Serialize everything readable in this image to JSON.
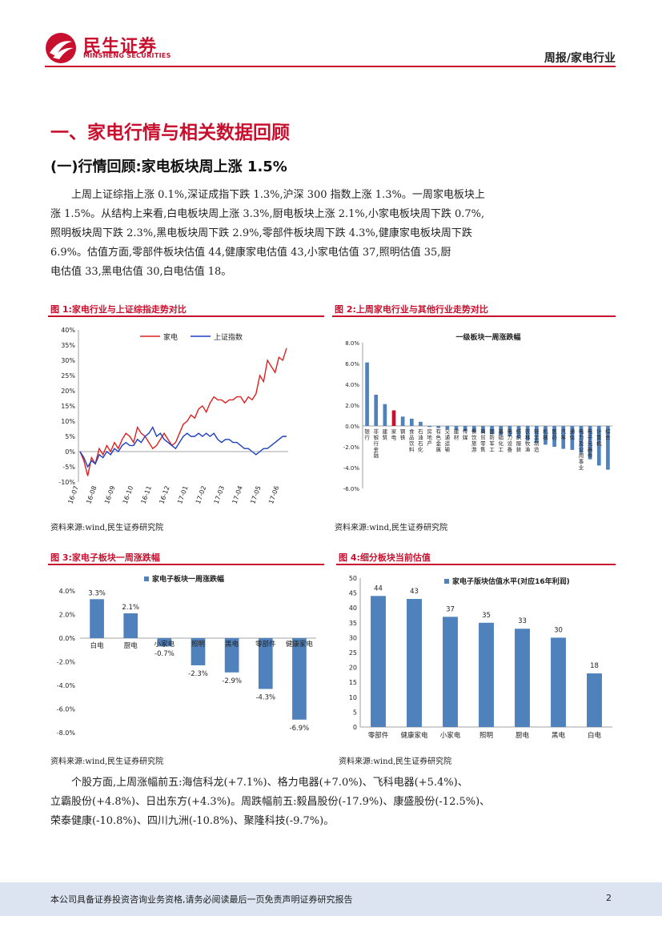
{
  "header": {
    "logo_cn": "民生证券",
    "logo_en": "MINSHENG SECURITIES",
    "doc_type": "周报/家电行业",
    "colors": {
      "brand_red": "#c8102e",
      "bar_blue": "#4f81bd"
    }
  },
  "section_title": "一、家电行情与相关数据回顾",
  "subsection_title": "(一)行情回顾:家电板块周上涨 1.5%",
  "paragraph1": [
    "上周上证综指上涨 0.1%,深证成指下跌 1.3%,沪深 300 指数上涨 1.3%。一周家电板块上",
    "涨 1.5%。从结构上来看,白电板块周上涨 3.3%,厨电板块上涨 2.1%,小家电板块周下跌 0.7%,",
    "照明板块周下跌 2.3%,黑电板块周下跌 2.9%,零部件板块周下跌 4.3%,健康家电板块周下跌",
    "6.9%。估值方面,零部件板块估值 44,健康家电估值 43,小家电估值 37,照明估值 35,厨",
    "电估值 33,黑电估值 30,白电估值 18。"
  ],
  "figures": {
    "fig1": {
      "title": "图 1:家电行业与上证综指走势对比",
      "source": "资料来源:wind,民生证券研究院"
    },
    "fig2": {
      "title": "图 2:上周家电行业与其他行业走势对比",
      "source": "资料来源:wind,民生证券研究院"
    },
    "fig3": {
      "title": "图 3:家电子板块一周涨跌幅",
      "source": "资料来源:wind,民生证券研究院"
    },
    "fig4": {
      "title": "图 4:细分板块当前估值",
      "source": "资料来源:wind,民生证券研究院"
    }
  },
  "paragraph2": [
    "个股方面,上周涨幅前五:海信科龙(+7.1%)、格力电器(+7.0%)、飞科电器(+5.4%)、",
    "立霸股份(+4.8%)、日出东方(+4.3%)。周跌幅前五:毅昌股份(-17.9%)、康盛股份(-12.5%)、",
    "荣泰健康(-10.8%)、四川九洲(-10.8%)、聚隆科技(-9.7%)。"
  ],
  "footer": {
    "disclaimer": "本公司具备证券投资咨询业务资格,请务必阅读最后一页免责声明证券研究报告",
    "page_number": "2"
  },
  "chart_data": [
    {
      "id": "fig1",
      "type": "line",
      "title": "",
      "x_tick_labels": [
        "16-07",
        "16-08",
        "16-09",
        "16-10",
        "16-11",
        "16-12",
        "17-01",
        "17-02",
        "17-03",
        "17-04",
        "17-05",
        "17-06"
      ],
      "y_tick_labels": [
        "-10%",
        "-5%",
        "0%",
        "5%",
        "10%",
        "15%",
        "20%",
        "25%",
        "30%",
        "35%",
        "40%"
      ],
      "ylim": [
        -10,
        40
      ],
      "series": [
        {
          "name": "家电",
          "color": "#e02020",
          "values": [
            0,
            -3,
            -8,
            -2,
            -4,
            1,
            -1,
            2,
            0,
            3,
            1,
            4,
            6,
            5,
            3,
            8,
            6,
            5,
            3,
            1,
            2,
            4,
            6,
            4,
            2,
            3,
            6,
            9,
            10,
            12,
            11,
            14,
            15,
            13,
            16,
            18,
            17,
            17,
            16,
            17,
            17,
            18,
            18,
            16,
            18,
            17,
            19,
            25,
            23,
            30,
            28,
            26,
            31,
            30,
            34
          ]
        },
        {
          "name": "上证指数",
          "color": "#1f3fbf",
          "values": [
            0,
            -2,
            -5,
            -3,
            -4,
            -1,
            -2,
            0,
            -1,
            1,
            0,
            2,
            3,
            2,
            2,
            4,
            3,
            5,
            6,
            8,
            5,
            6,
            4,
            3,
            2,
            1,
            3,
            5,
            6,
            5,
            5,
            6,
            5,
            6,
            5,
            6,
            4,
            3,
            4,
            4,
            3,
            3,
            2,
            1,
            1,
            0,
            -1,
            0,
            1,
            1,
            2,
            3,
            4,
            5,
            5
          ]
        }
      ],
      "legend": "top"
    },
    {
      "id": "fig2",
      "type": "bar",
      "title": "一级板块一周涨跌幅",
      "categories": [
        "银行",
        "非银行金融",
        "建筑",
        "家电",
        "钢铁",
        "食品饮料",
        "石油石化",
        "房地产",
        "有色金属",
        "交通运输",
        "建材",
        "传媒",
        "餐饮旅游",
        "商贸零售",
        "国防军工",
        "基础化工",
        "电力设备",
        "纺织服装",
        "农林牧渔",
        "轻工制造",
        "机械",
        "医药",
        "汽车",
        "通信",
        "电力及公用事业",
        "电子元器件",
        "计算机",
        "综合"
      ],
      "values": [
        6.1,
        3.0,
        2.1,
        1.5,
        0.9,
        0.7,
        0.4,
        -0.1,
        -0.2,
        -0.3,
        -0.4,
        -0.5,
        -0.6,
        -0.7,
        -0.8,
        -0.9,
        -1.0,
        -1.2,
        -1.4,
        -1.6,
        -1.8,
        -2.0,
        -2.2,
        -2.3,
        -2.6,
        -3.2,
        -3.8,
        -4.2
      ],
      "highlight": "家电",
      "ylim": [
        -6,
        8
      ],
      "y_tick_labels": [
        "8.0%",
        "6.0%",
        "4.0%",
        "2.0%",
        "0.0%",
        "-2.0%",
        "-4.0%",
        "-6.0%"
      ]
    },
    {
      "id": "fig3",
      "type": "bar",
      "title": "家电子板块一周涨跌幅",
      "categories": [
        "白电",
        "厨电",
        "小家电",
        "照明",
        "黑电",
        "零部件",
        "健康家电"
      ],
      "values": [
        3.3,
        2.1,
        -0.7,
        -2.3,
        -2.9,
        -4.3,
        -6.9
      ],
      "value_labels": [
        "3.3%",
        "2.1%",
        "-0.7%",
        "-2.3%",
        "-2.9%",
        "-4.3%",
        "-6.9%"
      ],
      "ylim": [
        -8,
        4
      ],
      "y_tick_labels": [
        "4.0%",
        "2.0%",
        "0.0%",
        "-2.0%",
        "-4.0%",
        "-6.0%",
        "-8.0%"
      ]
    },
    {
      "id": "fig4",
      "type": "bar",
      "title": "家电子版块估值水平(对应16年利润)",
      "categories": [
        "零部件",
        "健康家电",
        "小家电",
        "照明",
        "厨电",
        "黑电",
        "白电"
      ],
      "values": [
        44,
        43,
        37,
        35,
        33,
        30,
        18
      ],
      "value_labels": [
        "44",
        "43",
        "37",
        "35",
        "33",
        "30",
        "18"
      ],
      "ylim": [
        0,
        50
      ],
      "y_tick_labels": [
        "50",
        "45",
        "40",
        "35",
        "30",
        "25",
        "20",
        "15",
        "10",
        "5",
        "0"
      ]
    }
  ]
}
